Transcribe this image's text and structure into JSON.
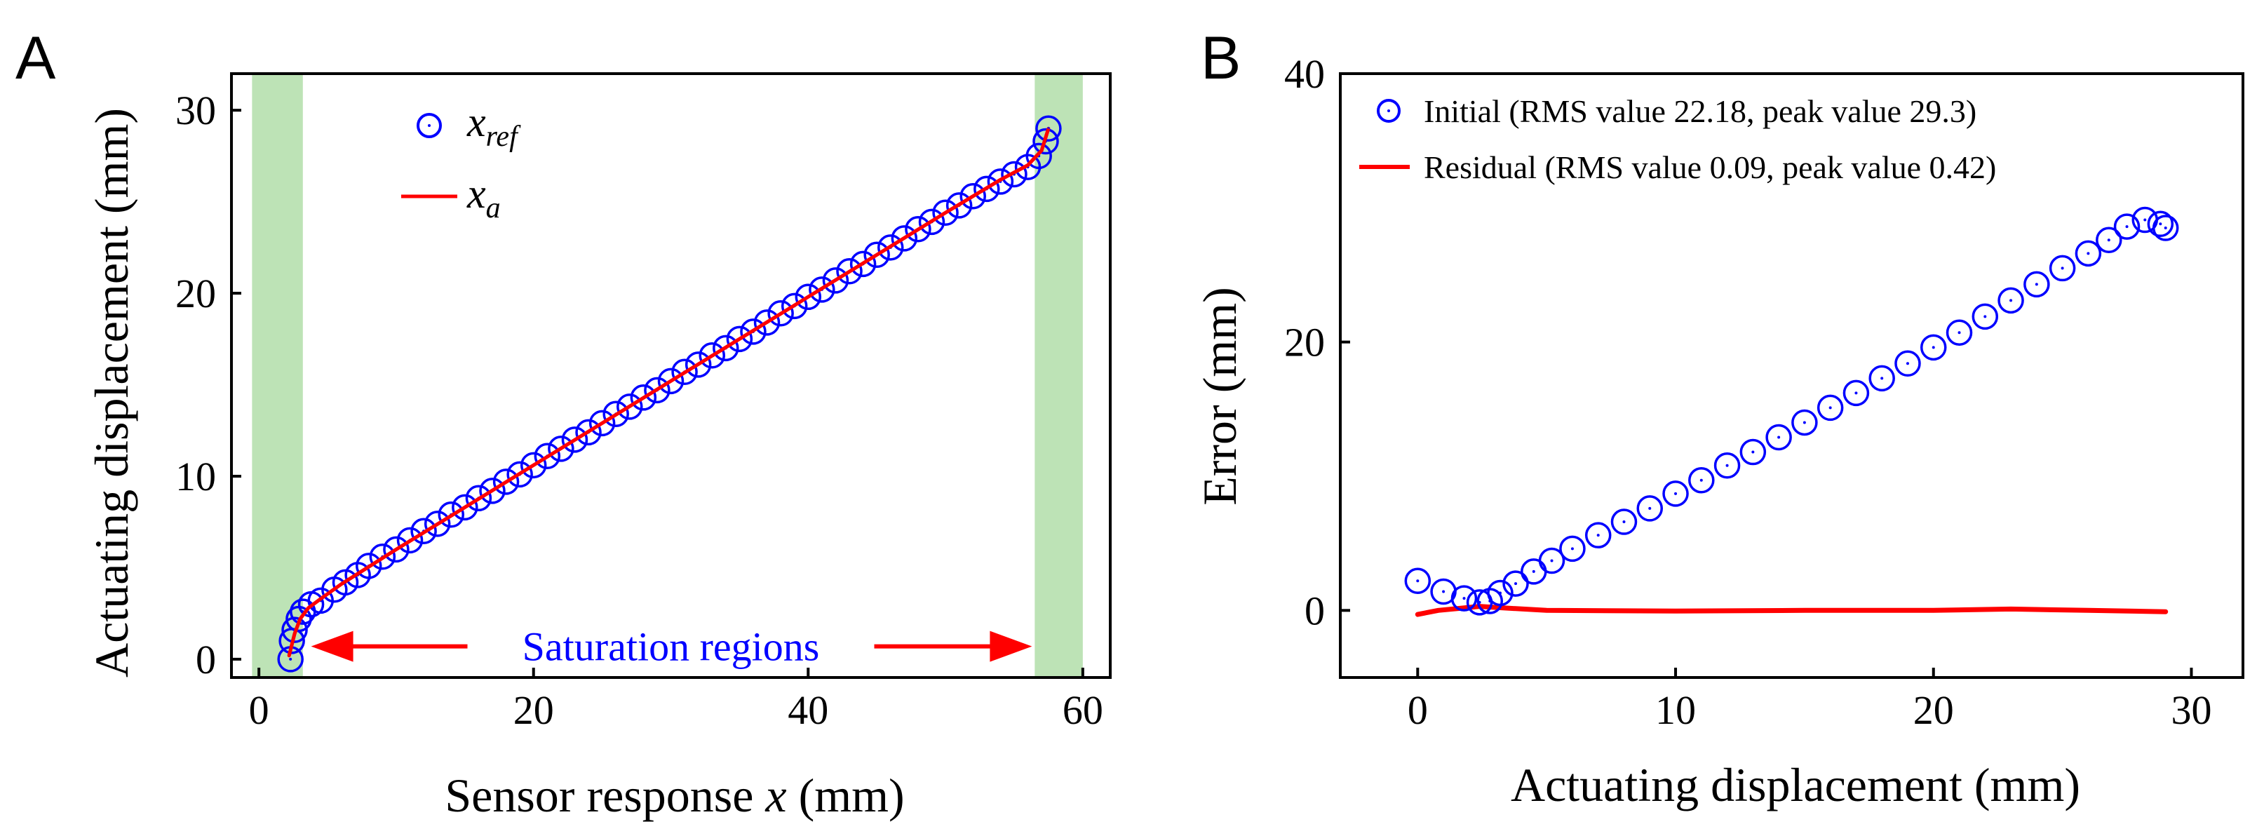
{
  "colors": {
    "ref_marker": "#0000ff",
    "model_line": "#ff0000",
    "saturation_fill": "#bde3b6",
    "annotation": "#0000ff"
  },
  "chart_data": [
    {
      "panel": "A",
      "type": "line",
      "xlabel_pre": "Sensor response ",
      "xlabel_var": "x",
      "xlabel_post": " (mm)",
      "ylabel": "Actuating displacement (mm)",
      "xlim": [
        -2,
        62
      ],
      "ylim": [
        -1,
        32
      ],
      "xticks": [
        0,
        20,
        40,
        60
      ],
      "yticks": [
        0,
        10,
        20,
        30
      ],
      "shaded_regions": [
        [
          -0.5,
          3.2
        ],
        [
          56.5,
          60
        ]
      ],
      "annotation": {
        "text": "Saturation regions",
        "x": 30,
        "y": 0.7,
        "arrow_from": 3.8,
        "arrow_to": 56.3
      },
      "legend_position": "top-left",
      "series": [
        {
          "name": "x_ref",
          "legend_main": "x",
          "legend_sub": "ref",
          "style": "circles",
          "points": [
            [
              2.3,
              0
            ],
            [
              2.4,
              1.0
            ],
            [
              2.6,
              1.6
            ],
            [
              2.9,
              2.2
            ],
            [
              3.2,
              2.6
            ],
            [
              3.8,
              3.0
            ],
            [
              4.5,
              3.2
            ],
            [
              5.5,
              3.8
            ],
            [
              6.3,
              4.2
            ],
            [
              7.2,
              4.6
            ],
            [
              8.0,
              5.1
            ],
            [
              9.0,
              5.6
            ],
            [
              10.0,
              6.0
            ],
            [
              11.0,
              6.5
            ],
            [
              12.0,
              7.0
            ],
            [
              13.0,
              7.4
            ],
            [
              14.0,
              7.9
            ],
            [
              15.0,
              8.3
            ],
            [
              16.0,
              8.8
            ],
            [
              17.0,
              9.2
            ],
            [
              18.0,
              9.7
            ],
            [
              19.0,
              10.1
            ],
            [
              20.0,
              10.6
            ],
            [
              21.0,
              11.1
            ],
            [
              22.0,
              11.5
            ],
            [
              23.0,
              12.0
            ],
            [
              24.0,
              12.4
            ],
            [
              25.0,
              12.9
            ],
            [
              26.0,
              13.4
            ],
            [
              27.0,
              13.8
            ],
            [
              28.0,
              14.3
            ],
            [
              29.0,
              14.7
            ],
            [
              30.0,
              15.2
            ],
            [
              31.0,
              15.7
            ],
            [
              32.0,
              16.1
            ],
            [
              33.0,
              16.6
            ],
            [
              34.0,
              17.0
            ],
            [
              35.0,
              17.5
            ],
            [
              36.0,
              17.9
            ],
            [
              37.0,
              18.4
            ],
            [
              38.0,
              18.9
            ],
            [
              39.0,
              19.3
            ],
            [
              40.0,
              19.8
            ],
            [
              41.0,
              20.2
            ],
            [
              42.0,
              20.7
            ],
            [
              43.0,
              21.2
            ],
            [
              44.0,
              21.6
            ],
            [
              45.0,
              22.1
            ],
            [
              46.0,
              22.5
            ],
            [
              47.0,
              23.0
            ],
            [
              48.0,
              23.5
            ],
            [
              49.0,
              23.9
            ],
            [
              50.0,
              24.4
            ],
            [
              51.0,
              24.8
            ],
            [
              52.0,
              25.3
            ],
            [
              53.0,
              25.7
            ],
            [
              54.0,
              26.1
            ],
            [
              55.0,
              26.5
            ],
            [
              56.0,
              26.9
            ],
            [
              56.8,
              27.5
            ],
            [
              57.3,
              28.3
            ],
            [
              57.5,
              29.0
            ]
          ]
        },
        {
          "name": "x_a",
          "legend_main": "x",
          "legend_sub": "a",
          "style": "line",
          "points": [
            [
              2.2,
              0.2
            ],
            [
              2.6,
              1.4
            ],
            [
              3.0,
              2.2
            ],
            [
              3.6,
              2.8
            ],
            [
              4.5,
              3.3
            ],
            [
              6.0,
              4.1
            ],
            [
              10.0,
              6.0
            ],
            [
              20.0,
              10.6
            ],
            [
              30.0,
              15.2
            ],
            [
              40.0,
              19.8
            ],
            [
              50.0,
              24.4
            ],
            [
              54.0,
              26.2
            ],
            [
              56.0,
              27.0
            ],
            [
              57.0,
              27.8
            ],
            [
              57.5,
              29.0
            ]
          ]
        }
      ]
    },
    {
      "panel": "B",
      "type": "line",
      "xlabel": "Actuating displacement (mm)",
      "ylabel": "Error (mm)",
      "xlim": [
        -3,
        32
      ],
      "ylim": [
        -5,
        40
      ],
      "xticks": [
        0,
        10,
        20,
        30
      ],
      "yticks": [
        0,
        20,
        40
      ],
      "legend_position": "top-left",
      "series": [
        {
          "name": "Initial (RMS value 22.18, peak value 29.3)",
          "style": "circles",
          "points": [
            [
              0,
              2.2
            ],
            [
              1.0,
              1.4
            ],
            [
              1.8,
              0.9
            ],
            [
              2.4,
              0.6
            ],
            [
              2.8,
              0.7
            ],
            [
              3.2,
              1.3
            ],
            [
              3.8,
              2.0
            ],
            [
              4.5,
              2.9
            ],
            [
              5.2,
              3.7
            ],
            [
              6.0,
              4.6
            ],
            [
              7.0,
              5.6
            ],
            [
              8.0,
              6.6
            ],
            [
              9.0,
              7.6
            ],
            [
              10.0,
              8.7
            ],
            [
              11.0,
              9.7
            ],
            [
              12.0,
              10.8
            ],
            [
              13.0,
              11.8
            ],
            [
              14.0,
              12.9
            ],
            [
              15.0,
              14.0
            ],
            [
              16.0,
              15.1
            ],
            [
              17.0,
              16.2
            ],
            [
              18.0,
              17.3
            ],
            [
              19.0,
              18.4
            ],
            [
              20.0,
              19.6
            ],
            [
              21.0,
              20.7
            ],
            [
              22.0,
              21.9
            ],
            [
              23.0,
              23.1
            ],
            [
              24.0,
              24.3
            ],
            [
              25.0,
              25.5
            ],
            [
              26.0,
              26.6
            ],
            [
              26.8,
              27.6
            ],
            [
              27.5,
              28.6
            ],
            [
              28.2,
              29.1
            ],
            [
              28.8,
              28.8
            ],
            [
              29.0,
              28.5
            ]
          ]
        },
        {
          "name": "Residual (RMS value 0.09, peak value 0.42)",
          "style": "line",
          "points": [
            [
              0,
              -0.3
            ],
            [
              0.8,
              0.0
            ],
            [
              1.6,
              0.15
            ],
            [
              2.4,
              0.3
            ],
            [
              3.2,
              0.2
            ],
            [
              5,
              0.0
            ],
            [
              10,
              -0.05
            ],
            [
              15,
              0.0
            ],
            [
              20,
              0.0
            ],
            [
              23,
              0.1
            ],
            [
              26,
              0.0
            ],
            [
              29,
              -0.1
            ]
          ]
        }
      ]
    }
  ]
}
